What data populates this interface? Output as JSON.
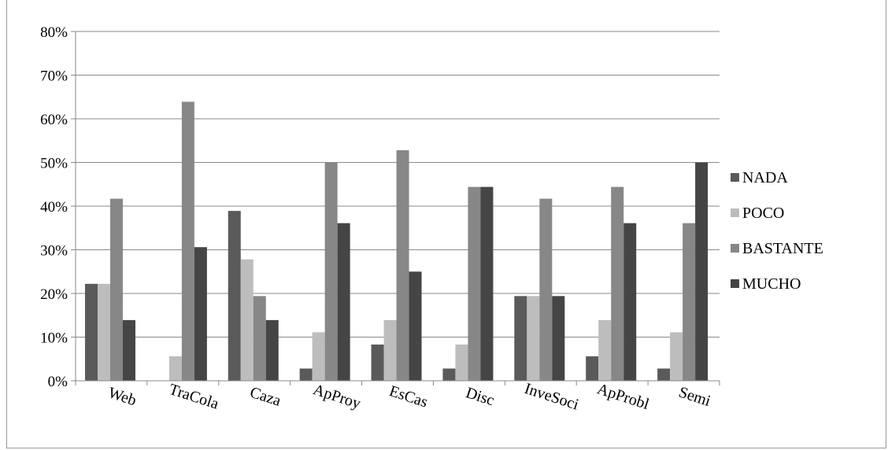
{
  "chart_data": {
    "type": "bar",
    "categories": [
      "Web",
      "TraCola",
      "Caza",
      "ApProy",
      "EsCas",
      "Disc",
      "InveSoci",
      "ApProbl",
      "Semi"
    ],
    "series": [
      {
        "name": "NADA",
        "color": "#5a5a5a",
        "values": [
          22.2,
          0,
          38.9,
          2.8,
          8.3,
          2.8,
          19.4,
          5.6,
          2.8
        ]
      },
      {
        "name": "POCO",
        "color": "#bdbdbd",
        "values": [
          22.2,
          5.6,
          27.8,
          11.1,
          13.9,
          8.3,
          19.4,
          13.9,
          11.1
        ]
      },
      {
        "name": "BASTANTE",
        "color": "#878787",
        "values": [
          41.7,
          63.9,
          19.4,
          50.0,
          52.8,
          44.4,
          41.7,
          44.4,
          36.1
        ]
      },
      {
        "name": "MUCHO",
        "color": "#454545",
        "values": [
          13.9,
          30.6,
          13.9,
          36.1,
          25.0,
          44.4,
          19.4,
          36.1,
          50.0
        ]
      }
    ],
    "ylim": [
      0,
      80
    ],
    "yticks": [
      "0%",
      "10%",
      "20%",
      "30%",
      "40%",
      "50%",
      "60%",
      "70%",
      "80%"
    ],
    "grid": true,
    "legend_position": "right",
    "title": "",
    "xlabel": "",
    "ylabel": ""
  }
}
